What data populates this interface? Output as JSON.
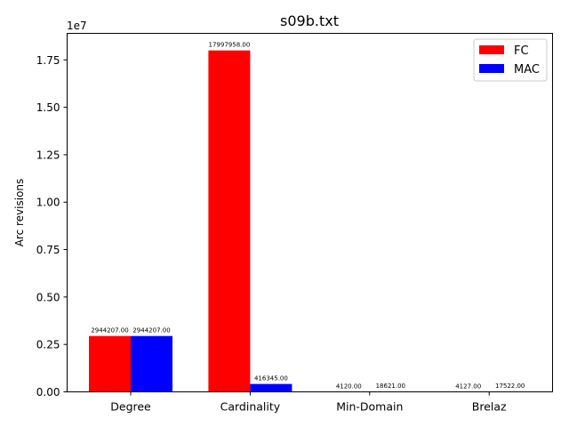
{
  "chart_data": {
    "type": "bar",
    "title": "s09b.txt",
    "xlabel": "",
    "ylabel": "Arc revisions",
    "y_offset_label": "1e7",
    "categories": [
      "Degree",
      "Cardinality",
      "Min-Domain",
      "Brelaz"
    ],
    "series": [
      {
        "name": "FC",
        "color": "#ff0000",
        "values": [
          2944207,
          17997958,
          4120,
          4127
        ]
      },
      {
        "name": "MAC",
        "color": "#0000ff",
        "values": [
          2944207,
          416345,
          18621,
          17522
        ]
      }
    ],
    "data_labels": [
      [
        "2944207.00",
        "17997958.00",
        "4120.00",
        "4127.00"
      ],
      [
        "2944207.00",
        "416345.00",
        "18621.00",
        "17522.00"
      ]
    ],
    "ylim": [
      0,
      18897856
    ],
    "y_ticks": [
      0,
      2500000,
      5000000,
      7500000,
      10000000,
      12500000,
      15000000,
      17500000
    ],
    "y_tick_labels": [
      "0.00",
      "0.25",
      "0.50",
      "0.75",
      "1.00",
      "1.25",
      "1.50",
      "1.75"
    ],
    "legend_position": "upper-right",
    "grid": false
  }
}
